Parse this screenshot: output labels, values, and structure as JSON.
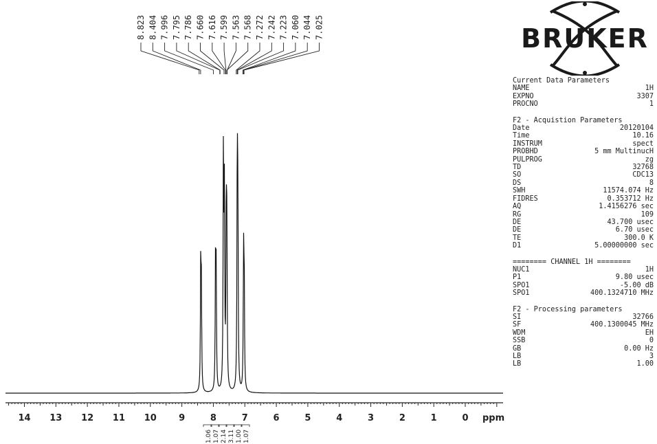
{
  "chart_data": {
    "type": "line",
    "xlabel": "ppm",
    "x_ticks": [
      "14",
      "13",
      "12",
      "11",
      "10",
      "9",
      "8",
      "7",
      "6",
      "5",
      "4",
      "3",
      "2",
      "1",
      "0"
    ],
    "xlim": [
      14.6,
      -1.2
    ],
    "peaks": [
      {
        "ppm": 8.4,
        "height": 0.53
      },
      {
        "ppm": 8.38,
        "height": 0.4
      },
      {
        "ppm": 7.93,
        "height": 0.55
      },
      {
        "ppm": 7.91,
        "height": 0.45
      },
      {
        "ppm": 7.68,
        "height": 1.0
      },
      {
        "ppm": 7.65,
        "height": 0.8
      },
      {
        "ppm": 7.59,
        "height": 0.74
      },
      {
        "ppm": 7.57,
        "height": 0.6
      },
      {
        "ppm": 7.24,
        "height": 0.98
      },
      {
        "ppm": 7.22,
        "height": 0.7
      },
      {
        "ppm": 7.04,
        "height": 0.55
      },
      {
        "ppm": 7.02,
        "height": 0.45
      }
    ],
    "peak_labels": [
      "8.823",
      "8.404",
      "7.996",
      "7.795",
      "7.786",
      "7.660",
      "7.616",
      "7.599",
      "7.563",
      "7.568",
      "7.272",
      "7.242",
      "7.223",
      "7.060",
      "7.044",
      "7.025"
    ],
    "integrals": [
      "1.06",
      "1.07",
      "2.14",
      "3.11",
      "1.00",
      "1.07"
    ]
  },
  "logo": {
    "text": "BRUKER"
  },
  "sections": [
    {
      "title": "Current Data Parameters",
      "rows": [
        {
          "k": "NAME",
          "v": "1H"
        },
        {
          "k": "EXPNO",
          "v": "3307"
        },
        {
          "k": "PROCNO",
          "v": "1"
        }
      ]
    },
    {
      "title": "F2 - Acquistion Parameters",
      "rows": [
        {
          "k": "Date",
          "v": "20120104"
        },
        {
          "k": "Time",
          "v": "10.16"
        },
        {
          "k": "INSTRUM",
          "v": "spect"
        },
        {
          "k": "PROBHD",
          "v": "5 mm MultinucH"
        },
        {
          "k": "PULPROG",
          "v": "zg"
        },
        {
          "k": "TD",
          "v": "32768"
        },
        {
          "k": "SO",
          "v": "CDC13"
        },
        {
          "k": "DS",
          "v": "8"
        },
        {
          "k": "SWH",
          "v": "11574.074 Hz"
        },
        {
          "k": "FIDRES",
          "v": "0.353712 Hz"
        },
        {
          "k": "AQ",
          "v": "1.4156276 sec"
        },
        {
          "k": "RG",
          "v": "109"
        },
        {
          "k": "DE",
          "v": "43.700 usec"
        },
        {
          "k": "DE",
          "v": "6.70 usec"
        },
        {
          "k": "TE",
          "v": "300.0  K"
        },
        {
          "k": "D1",
          "v": "5.00000000 sec"
        }
      ]
    },
    {
      "title": "======== CHANNEL  1H ========",
      "rows": [
        {
          "k": "NUC1",
          "v": "1H"
        },
        {
          "k": "P1",
          "v": "9.80 usec"
        },
        {
          "k": "SPO1",
          "v": "-5.00 dB"
        },
        {
          "k": "SPO1",
          "v": "400.1324710 MHz"
        }
      ]
    },
    {
      "title": "F2 - Processing parameters",
      "rows": [
        {
          "k": "SI",
          "v": "32766"
        },
        {
          "k": "SF",
          "v": "400.1300045 MHz"
        },
        {
          "k": "WDM",
          "v": "EH"
        },
        {
          "k": "SSB",
          "v": "0"
        },
        {
          "k": "GB",
          "v": "0.00 Hz"
        },
        {
          "k": "LB",
          "v": "3"
        },
        {
          "k": "LB",
          "v": "1.00"
        }
      ]
    }
  ]
}
